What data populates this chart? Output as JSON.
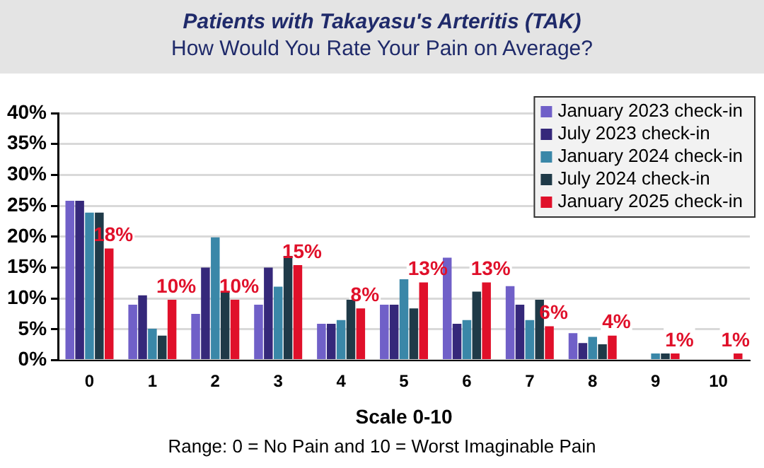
{
  "chart_data": {
    "type": "bar",
    "title": "Patients with Takayasu's Arteritis (TAK)",
    "subtitle": "How Would You Rate Your Pain on Average?",
    "xlabel": "Scale 0-10",
    "annotations": [
      "Range: 0 = No Pain and 10 = Worst Imaginable Pain"
    ],
    "categories": [
      "0",
      "1",
      "2",
      "3",
      "4",
      "5",
      "6",
      "7",
      "8",
      "9",
      "10"
    ],
    "series": [
      {
        "name": "January 2023 check-in",
        "color": "#7060c8",
        "values": [
          25.8,
          9.0,
          7.5,
          9.0,
          5.9,
          9.0,
          16.6,
          12.0,
          4.4,
          0,
          0
        ]
      },
      {
        "name": "July 2023 check-in",
        "color": "#35287a",
        "values": [
          25.8,
          10.5,
          15.0,
          15.0,
          5.9,
          9.0,
          5.9,
          9.0,
          2.8,
          0,
          0
        ]
      },
      {
        "name": "January 2024 check-in",
        "color": "#3a87a8",
        "values": [
          23.9,
          5.1,
          19.9,
          11.9,
          6.5,
          13.1,
          6.5,
          6.5,
          3.8,
          1.1,
          0
        ]
      },
      {
        "name": "July 2024 check-in",
        "color": "#1f3a48",
        "values": [
          23.9,
          4.0,
          11.1,
          16.9,
          9.8,
          8.4,
          11.1,
          9.8,
          2.6,
          1.1,
          0
        ]
      },
      {
        "name": "January 2025 check-in",
        "color": "#e0102a",
        "values": [
          18.1,
          9.8,
          9.8,
          15.4,
          8.4,
          12.6,
          12.6,
          5.5,
          4.0,
          1.1,
          1.1
        ],
        "value_labels": [
          "18%",
          "10%",
          "10%",
          "15%",
          "8%",
          "13%",
          "13%",
          "6%",
          "4%",
          "1%",
          "1%"
        ]
      }
    ],
    "ylim": [
      0,
      40
    ],
    "yticks": [
      {
        "value": 0,
        "label": "0%"
      },
      {
        "value": 5,
        "label": "5%"
      },
      {
        "value": 10,
        "label": "10%"
      },
      {
        "value": 15,
        "label": "15%"
      },
      {
        "value": 20,
        "label": "20%"
      },
      {
        "value": 25,
        "label": "25%"
      },
      {
        "value": 30,
        "label": "30%"
      },
      {
        "value": 35,
        "label": "35%"
      },
      {
        "value": 40,
        "label": "40%"
      }
    ],
    "grid": "y",
    "legend": "top right"
  }
}
